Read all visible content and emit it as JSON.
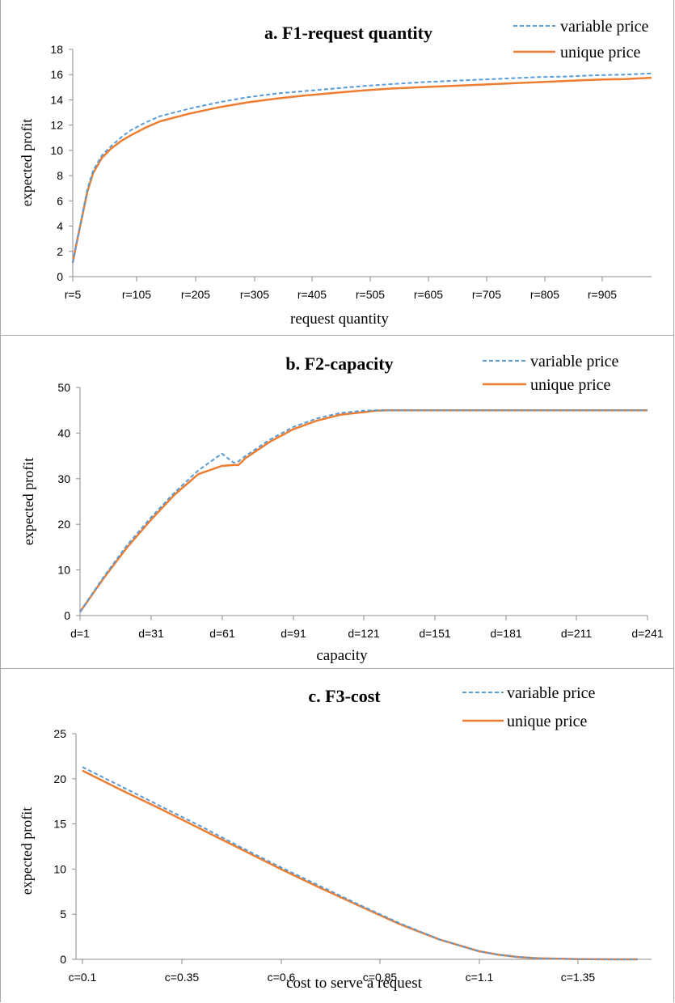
{
  "colors": {
    "variable": "#5b9bd5",
    "unique": "#ed7d31"
  },
  "chart_data": [
    {
      "type": "line",
      "title": "a. F1-request quantity",
      "xlabel": "request quantity",
      "ylabel": "expected profit",
      "ylim": [
        0,
        18
      ],
      "yticks": [
        "0",
        "2",
        "4",
        "6",
        "8",
        "10",
        "12",
        "14",
        "16",
        "18"
      ],
      "xticks": [
        "r=5",
        "r=105",
        "r=205",
        "r=305",
        "r=405",
        "r=505",
        "r=605",
        "r=705",
        "r=805",
        "r=905"
      ],
      "legend_position": "top-right",
      "x": [
        5,
        10,
        20,
        30,
        40,
        55,
        70,
        90,
        105,
        130,
        155,
        205,
        255,
        305,
        355,
        405,
        455,
        505,
        555,
        605,
        655,
        705,
        755,
        805,
        855,
        905,
        955,
        1000
      ],
      "series": [
        {
          "name": "variable price",
          "style": "dashed",
          "values": [
            1.1,
            2.3,
            4.6,
            6.9,
            8.4,
            9.6,
            10.3,
            11.1,
            11.6,
            12.2,
            12.7,
            13.3,
            13.8,
            14.2,
            14.5,
            14.7,
            14.9,
            15.1,
            15.25,
            15.4,
            15.5,
            15.6,
            15.7,
            15.8,
            15.85,
            15.95,
            16.0,
            16.1
          ]
        },
        {
          "name": "unique price",
          "style": "solid",
          "values": [
            1.1,
            2.3,
            4.5,
            6.7,
            8.2,
            9.4,
            10.1,
            10.8,
            11.2,
            11.8,
            12.3,
            12.9,
            13.4,
            13.8,
            14.1,
            14.35,
            14.55,
            14.75,
            14.9,
            15.0,
            15.1,
            15.2,
            15.3,
            15.4,
            15.5,
            15.6,
            15.65,
            15.75
          ]
        }
      ]
    },
    {
      "type": "line",
      "title": "b. F2-capacity",
      "xlabel": "capacity",
      "ylabel": "expected profit",
      "ylim": [
        0,
        50
      ],
      "yticks": [
        "0",
        "10",
        "20",
        "30",
        "40",
        "50"
      ],
      "xticks": [
        "d=1",
        "d=31",
        "d=61",
        "d=91",
        "d=121",
        "d=151",
        "d=181",
        "d=211",
        "d=241"
      ],
      "legend_position": "top-right",
      "x": [
        1,
        11,
        21,
        31,
        41,
        51,
        61,
        66,
        68,
        71,
        81,
        91,
        101,
        111,
        121,
        126,
        131,
        161,
        191,
        221,
        241
      ],
      "series": [
        {
          "name": "variable price",
          "style": "dashed",
          "values": [
            0.8,
            8.5,
            15.5,
            21.5,
            27,
            31.8,
            35.5,
            33.5,
            33.8,
            35,
            38.5,
            41.3,
            43.2,
            44.4,
            44.9,
            45,
            45,
            45,
            45,
            45,
            45
          ]
        },
        {
          "name": "unique price",
          "style": "solid",
          "values": [
            0.8,
            8.2,
            15,
            21,
            26.5,
            31,
            32.8,
            33,
            33,
            34.5,
            38,
            40.8,
            42.7,
            44,
            44.6,
            44.9,
            45,
            45,
            45,
            45,
            45
          ]
        }
      ]
    },
    {
      "type": "line",
      "title": "c. F3-cost",
      "xlabel": "cost to serve a request",
      "ylabel": "expected profit",
      "ylim": [
        0,
        25
      ],
      "yticks": [
        "0",
        "5",
        "10",
        "15",
        "20",
        "25"
      ],
      "xticks": [
        "c=0.1",
        "c=0.35",
        "c=0.6",
        "c=0.85",
        "c=1.1",
        "c=1.35"
      ],
      "legend_position": "top-right",
      "x": [
        0.1,
        0.2,
        0.3,
        0.4,
        0.5,
        0.6,
        0.7,
        0.8,
        0.9,
        1.0,
        1.1,
        1.15,
        1.2,
        1.25,
        1.3,
        1.35,
        1.4,
        1.45,
        1.5
      ],
      "series": [
        {
          "name": "variable price",
          "style": "dashed",
          "values": [
            21.3,
            19.1,
            16.9,
            14.7,
            12.4,
            10.2,
            8.1,
            6.0,
            4.0,
            2.2,
            0.9,
            0.5,
            0.25,
            0.12,
            0.06,
            0.03,
            0.01,
            0.0,
            0.0
          ]
        },
        {
          "name": "unique price",
          "style": "solid",
          "values": [
            20.9,
            18.7,
            16.6,
            14.4,
            12.2,
            10.0,
            7.9,
            5.9,
            3.9,
            2.2,
            0.9,
            0.5,
            0.25,
            0.12,
            0.06,
            0.03,
            0.01,
            0.0,
            0.0
          ]
        }
      ]
    }
  ]
}
